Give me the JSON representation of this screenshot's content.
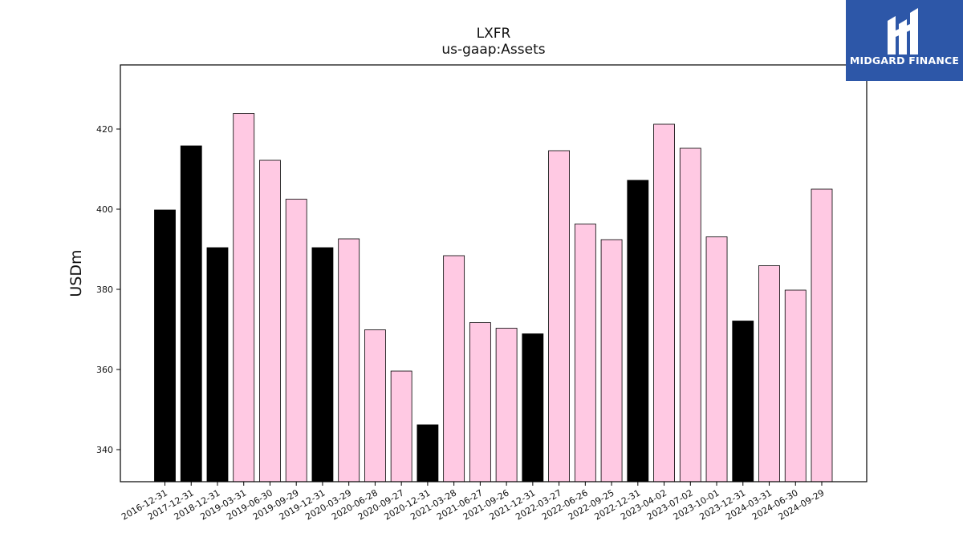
{
  "chart_data": {
    "type": "bar",
    "title": "LXFR",
    "subtitle": "us-gaap:Assets",
    "xlabel": "",
    "ylabel": "USDm",
    "ylim": [
      332,
      436
    ],
    "yticks": [
      340,
      360,
      380,
      400,
      420
    ],
    "grid": false,
    "categories": [
      "2016-12-31",
      "2017-12-31",
      "2018-12-31",
      "2019-03-31",
      "2019-06-30",
      "2019-09-29",
      "2019-12-31",
      "2020-03-29",
      "2020-06-28",
      "2020-09-27",
      "2020-12-31",
      "2021-03-28",
      "2021-06-27",
      "2021-09-26",
      "2021-12-31",
      "2022-03-27",
      "2022-06-26",
      "2022-09-25",
      "2022-12-31",
      "2023-04-02",
      "2023-07-02",
      "2023-10-01",
      "2023-12-31",
      "2024-03-31",
      "2024-06-30",
      "2024-09-29"
    ],
    "values": [
      399.8,
      415.8,
      390.4,
      423.9,
      412.2,
      402.5,
      390.4,
      392.6,
      369.9,
      359.6,
      346.2,
      388.4,
      371.7,
      370.3,
      368.9,
      414.6,
      396.3,
      392.4,
      407.2,
      421.2,
      415.2,
      393.1,
      372.1,
      385.9,
      379.8,
      405.0
    ],
    "bar_colors": [
      "#000000",
      "#000000",
      "#000000",
      "#ffc9e3",
      "#ffc9e3",
      "#ffc9e3",
      "#000000",
      "#ffc9e3",
      "#ffc9e3",
      "#ffc9e3",
      "#000000",
      "#ffc9e3",
      "#ffc9e3",
      "#ffc9e3",
      "#000000",
      "#ffc9e3",
      "#ffc9e3",
      "#ffc9e3",
      "#000000",
      "#ffc9e3",
      "#ffc9e3",
      "#ffc9e3",
      "#000000",
      "#ffc9e3",
      "#ffc9e3",
      "#ffc9e3"
    ]
  },
  "logo": {
    "text": "MIDGARD FINANCE",
    "background": "#2d57a8"
  }
}
